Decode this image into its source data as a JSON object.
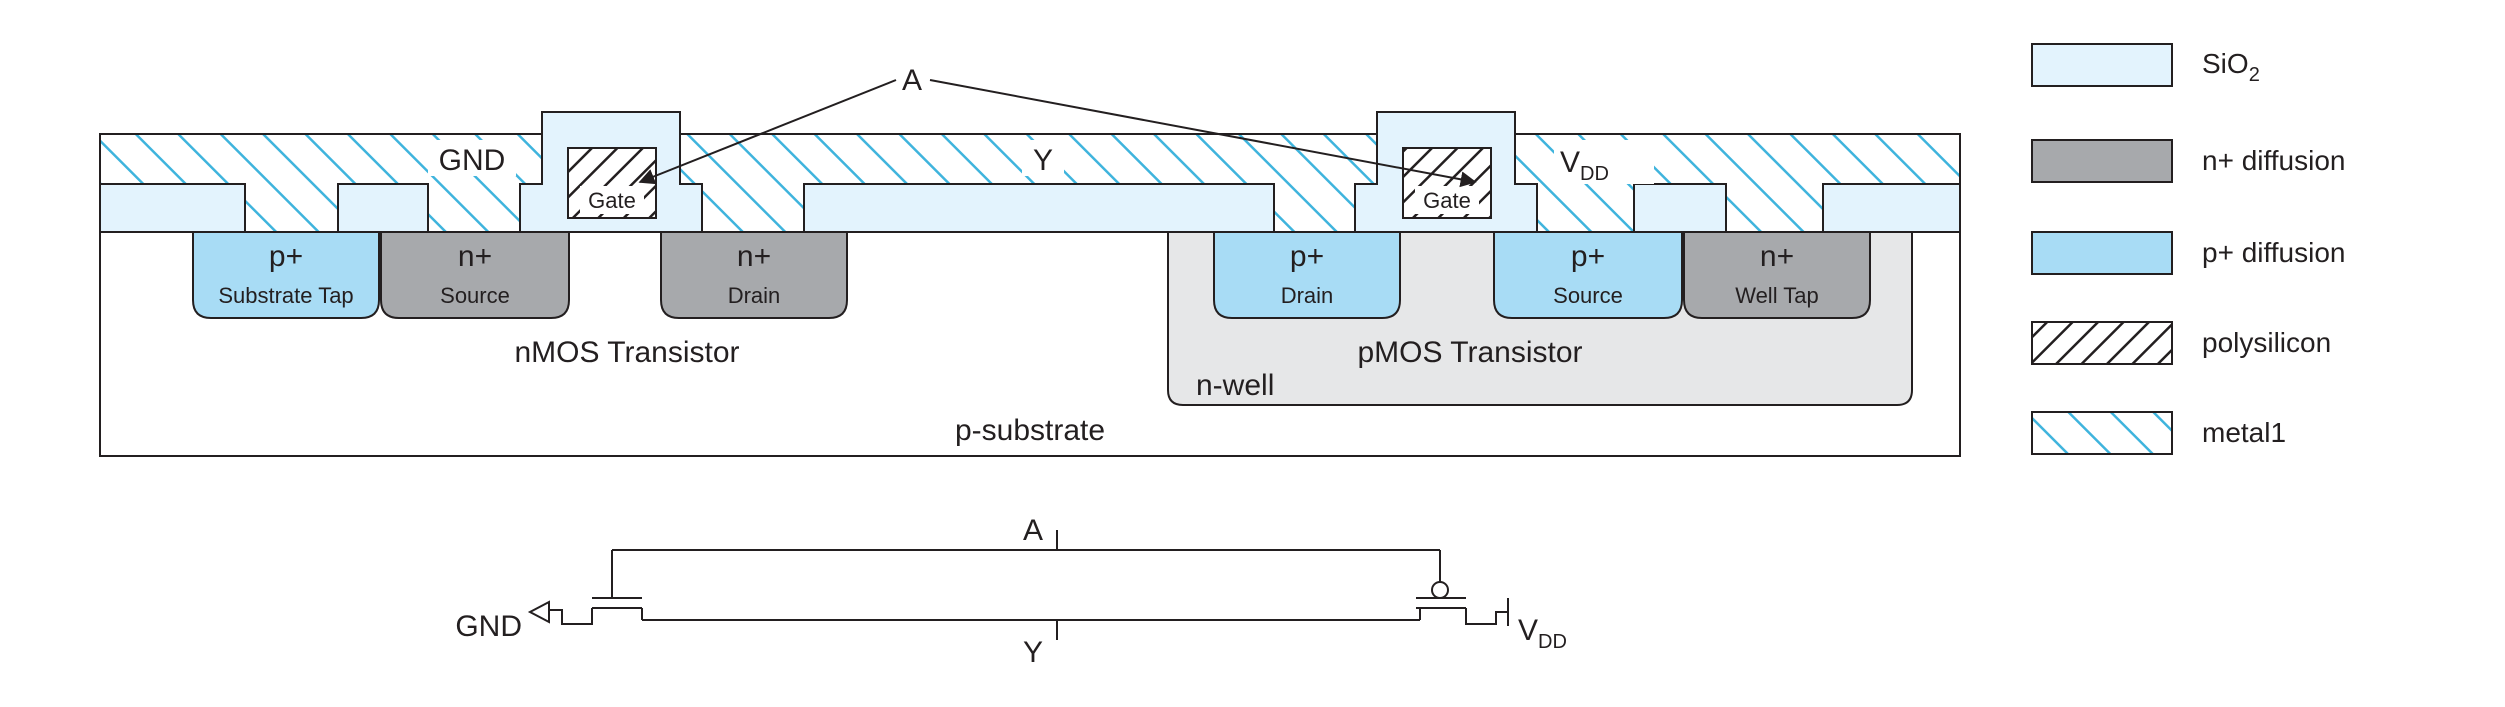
{
  "colors": {
    "sio2": "#e3f3fd",
    "n_diffusion": "#a7a9ac",
    "p_diffusion": "#a8dcf5",
    "metal_hatch": "#3fb4dd",
    "n_well": "#e6e7e8",
    "outline": "#231f20"
  },
  "cross_section": {
    "substrate_label": "p-substrate",
    "nwell_label": "n-well",
    "nmos_label": "nMOS Transistor",
    "pmos_label": "pMOS Transistor",
    "gnd_label": "GND",
    "y_label": "Y",
    "a_label": "A",
    "vdd_main": "V",
    "vdd_sub": "DD",
    "gate_label": "Gate",
    "regions": [
      {
        "type": "p+",
        "name": "Substrate Tap"
      },
      {
        "type": "n+",
        "name": "Source"
      },
      {
        "type": "n+",
        "name": "Drain"
      },
      {
        "type": "p+",
        "name": "Drain"
      },
      {
        "type": "p+",
        "name": "Source"
      },
      {
        "type": "n+",
        "name": "Well Tap"
      }
    ]
  },
  "legend": [
    {
      "main": "SiO",
      "sub": "2",
      "swatch": "sio2"
    },
    {
      "main": "n+ diffusion",
      "sub": "",
      "swatch": "n_diffusion"
    },
    {
      "main": "p+ diffusion",
      "sub": "",
      "swatch": "p_diffusion"
    },
    {
      "main": "polysilicon",
      "sub": "",
      "swatch": "poly"
    },
    {
      "main": "metal1",
      "sub": "",
      "swatch": "metal"
    }
  ],
  "schematic": {
    "a_label": "A",
    "y_label": "Y",
    "gnd_label": "GND",
    "vdd_main": "V",
    "vdd_sub": "DD"
  }
}
